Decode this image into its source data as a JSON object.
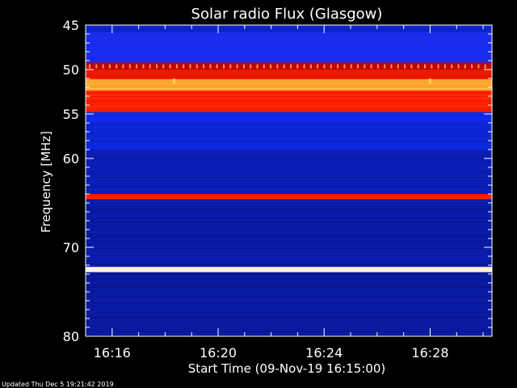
{
  "chart_data": {
    "type": "heatmap",
    "title": "Solar radio Flux (Glasgow)",
    "xlabel": "Start Time (09-Nov-19 16:15:00)",
    "ylabel": "Frequency [MHz]",
    "x_unit": "minutes",
    "xlim": [
      "16:15:00",
      "16:30:20"
    ],
    "ylim": [
      45,
      80
    ],
    "y_inverted": true,
    "x_ticks": [
      "16:16",
      "16:20",
      "16:24",
      "16:28"
    ],
    "y_ticks": [
      45,
      50,
      55,
      60,
      70,
      80
    ],
    "colormap": [
      "#00003a",
      "#0a1aa0",
      "#1030ff",
      "#c80000",
      "#ff2000",
      "#ffd040",
      "#ffffff"
    ],
    "bands": [
      {
        "from": 45.0,
        "to": 45.8,
        "level": 0.25
      },
      {
        "from": 45.8,
        "to": 49.2,
        "level": 0.34
      },
      {
        "from": 49.2,
        "to": 50.0,
        "level": 0.5
      },
      {
        "from": 50.0,
        "to": 51.1,
        "level": 0.62
      },
      {
        "from": 51.1,
        "to": 52.4,
        "level": 0.8
      },
      {
        "from": 52.4,
        "to": 54.8,
        "level": 0.66
      },
      {
        "from": 54.8,
        "to": 55.8,
        "level": 0.3
      },
      {
        "from": 55.8,
        "to": 59.0,
        "level": 0.26
      },
      {
        "from": 59.0,
        "to": 64.0,
        "level": 0.2
      },
      {
        "from": 64.0,
        "to": 64.6,
        "level": 0.65
      },
      {
        "from": 64.6,
        "to": 72.2,
        "level": 0.18
      },
      {
        "from": 72.2,
        "to": 72.8,
        "level": 0.98
      },
      {
        "from": 72.8,
        "to": 80.0,
        "level": 0.16
      }
    ],
    "bursts": [
      {
        "time": "16:18:20",
        "frequency": 51.3
      },
      {
        "time": "16:28:00",
        "frequency": 51.3
      }
    ],
    "spike_row_frequency": 49.6
  },
  "footer": {
    "updated": "Updated Thu Dec  5 19:21:42 2019"
  }
}
